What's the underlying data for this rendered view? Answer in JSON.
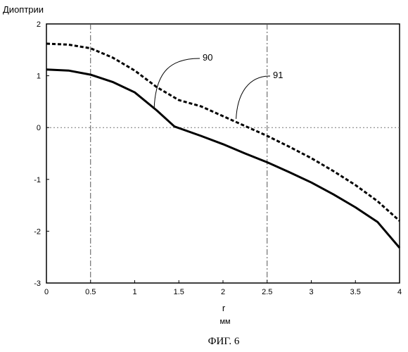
{
  "chart_data": {
    "type": "line",
    "ylabel": "Диоптрии",
    "xlabel": "r",
    "xunit": "мм",
    "caption": "ФИГ. 6",
    "xlim": [
      0,
      4
    ],
    "ylim": [
      -3,
      2
    ],
    "x_ticks": [
      0,
      0.5,
      1,
      1.5,
      2,
      2.5,
      3,
      3.5,
      4
    ],
    "x_tick_labels": [
      "0",
      "0.5",
      "1",
      "1.5",
      "2",
      "2.5",
      "3",
      "3.5",
      "4"
    ],
    "y_ticks": [
      -3,
      -2,
      -1,
      0,
      1,
      2
    ],
    "y_tick_labels": [
      "-3",
      "-2",
      "-1",
      "0",
      "1",
      "2"
    ],
    "gridlines_x": [
      0.5,
      2.5
    ],
    "gridlines_y": [
      0
    ],
    "series": [
      {
        "name": "90",
        "style": "solid",
        "color": "#000000",
        "x": [
          0,
          0.25,
          0.5,
          0.75,
          1.0,
          1.25,
          1.45,
          1.75,
          2.0,
          2.25,
          2.5,
          2.75,
          3.0,
          3.25,
          3.5,
          3.75,
          4.0
        ],
        "y": [
          1.12,
          1.1,
          1.02,
          0.88,
          0.68,
          0.33,
          0.02,
          -0.16,
          -0.32,
          -0.5,
          -0.67,
          -0.86,
          -1.06,
          -1.29,
          -1.54,
          -1.82,
          -2.32
        ]
      },
      {
        "name": "91",
        "style": "dashed",
        "color": "#000000",
        "x": [
          0,
          0.25,
          0.5,
          0.75,
          1.0,
          1.25,
          1.5,
          1.75,
          2.0,
          2.25,
          2.5,
          2.75,
          3.0,
          3.25,
          3.5,
          3.75,
          4.0
        ],
        "y": [
          1.62,
          1.6,
          1.53,
          1.35,
          1.1,
          0.78,
          0.53,
          0.41,
          0.22,
          0.03,
          -0.16,
          -0.37,
          -0.59,
          -0.84,
          -1.11,
          -1.42,
          -1.8
        ]
      }
    ],
    "annotations": [
      {
        "label": "90",
        "target_x": 1.22,
        "target_y": 0.36
      },
      {
        "label": "91",
        "target_x": 2.1,
        "target_y": 0.14
      }
    ]
  }
}
